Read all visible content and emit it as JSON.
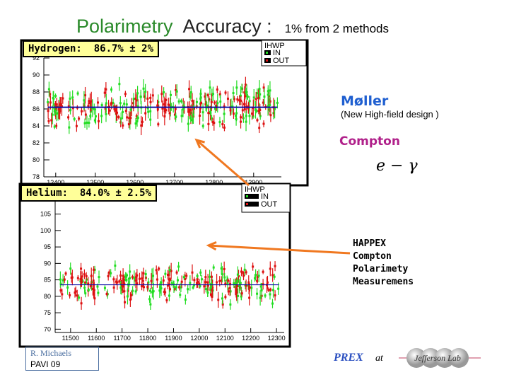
{
  "slide": {
    "title": "Polarimetry",
    "title_accuracy": "Accuracy :",
    "title_sub": "1%  from  2  methods",
    "moller": "Møller",
    "moller_sub": "(New High-field design )",
    "compton": "Compton",
    "formula": "e − γ",
    "happex_lines": [
      "HAPPEX",
      "Compton",
      "Polarimety",
      "Measuremens"
    ],
    "author": "R. Michaels",
    "conference": "PAVI  09",
    "prex": "PREX",
    "at": "at",
    "logo_text": "Jefferson Lab",
    "colors": {
      "accent_title": "#2a8a2a",
      "moller": "#1f5fd0",
      "compton": "#b0208a",
      "arrow": "#f07820",
      "in": "#22dd22",
      "out": "#dd1111",
      "fit": "#1010aa"
    }
  },
  "chart_data": [
    {
      "type": "scatter",
      "label": "Hydrogen:  86.7% ± 2%",
      "legend_title": "IHWP",
      "legend": [
        "IN",
        "OUT"
      ],
      "legend_placement": "top-right",
      "xlim": [
        12370,
        12970
      ],
      "ylim": [
        78,
        92
      ],
      "xticks": [
        12400,
        12500,
        12600,
        12700,
        12800,
        12900
      ],
      "yticks": [
        78,
        80,
        82,
        84,
        86,
        88,
        90,
        92
      ],
      "fit_line": {
        "y": 86.2,
        "x": [
          12380,
          12960
        ]
      },
      "point_spread": {
        "center": 86.2,
        "typical_range": [
          83,
          90
        ]
      }
    },
    {
      "type": "scatter",
      "label": "Helium:  84.0% ± 2.5%",
      "legend_title": "IHWP",
      "legend": [
        "IN",
        "OUT"
      ],
      "legend_placement": "top-right",
      "xlim": [
        11440,
        12330
      ],
      "ylim": [
        69,
        109
      ],
      "xticks": [
        11500,
        11600,
        11700,
        11800,
        11900,
        12000,
        12100,
        12200,
        12300
      ],
      "yticks": [
        70,
        75,
        80,
        85,
        90,
        95,
        100,
        105
      ],
      "fit_line": {
        "y": 83.5,
        "x": [
          11460,
          12310
        ]
      },
      "point_spread": {
        "center": 83.5,
        "typical_range": [
          76,
          92
        ]
      }
    }
  ]
}
